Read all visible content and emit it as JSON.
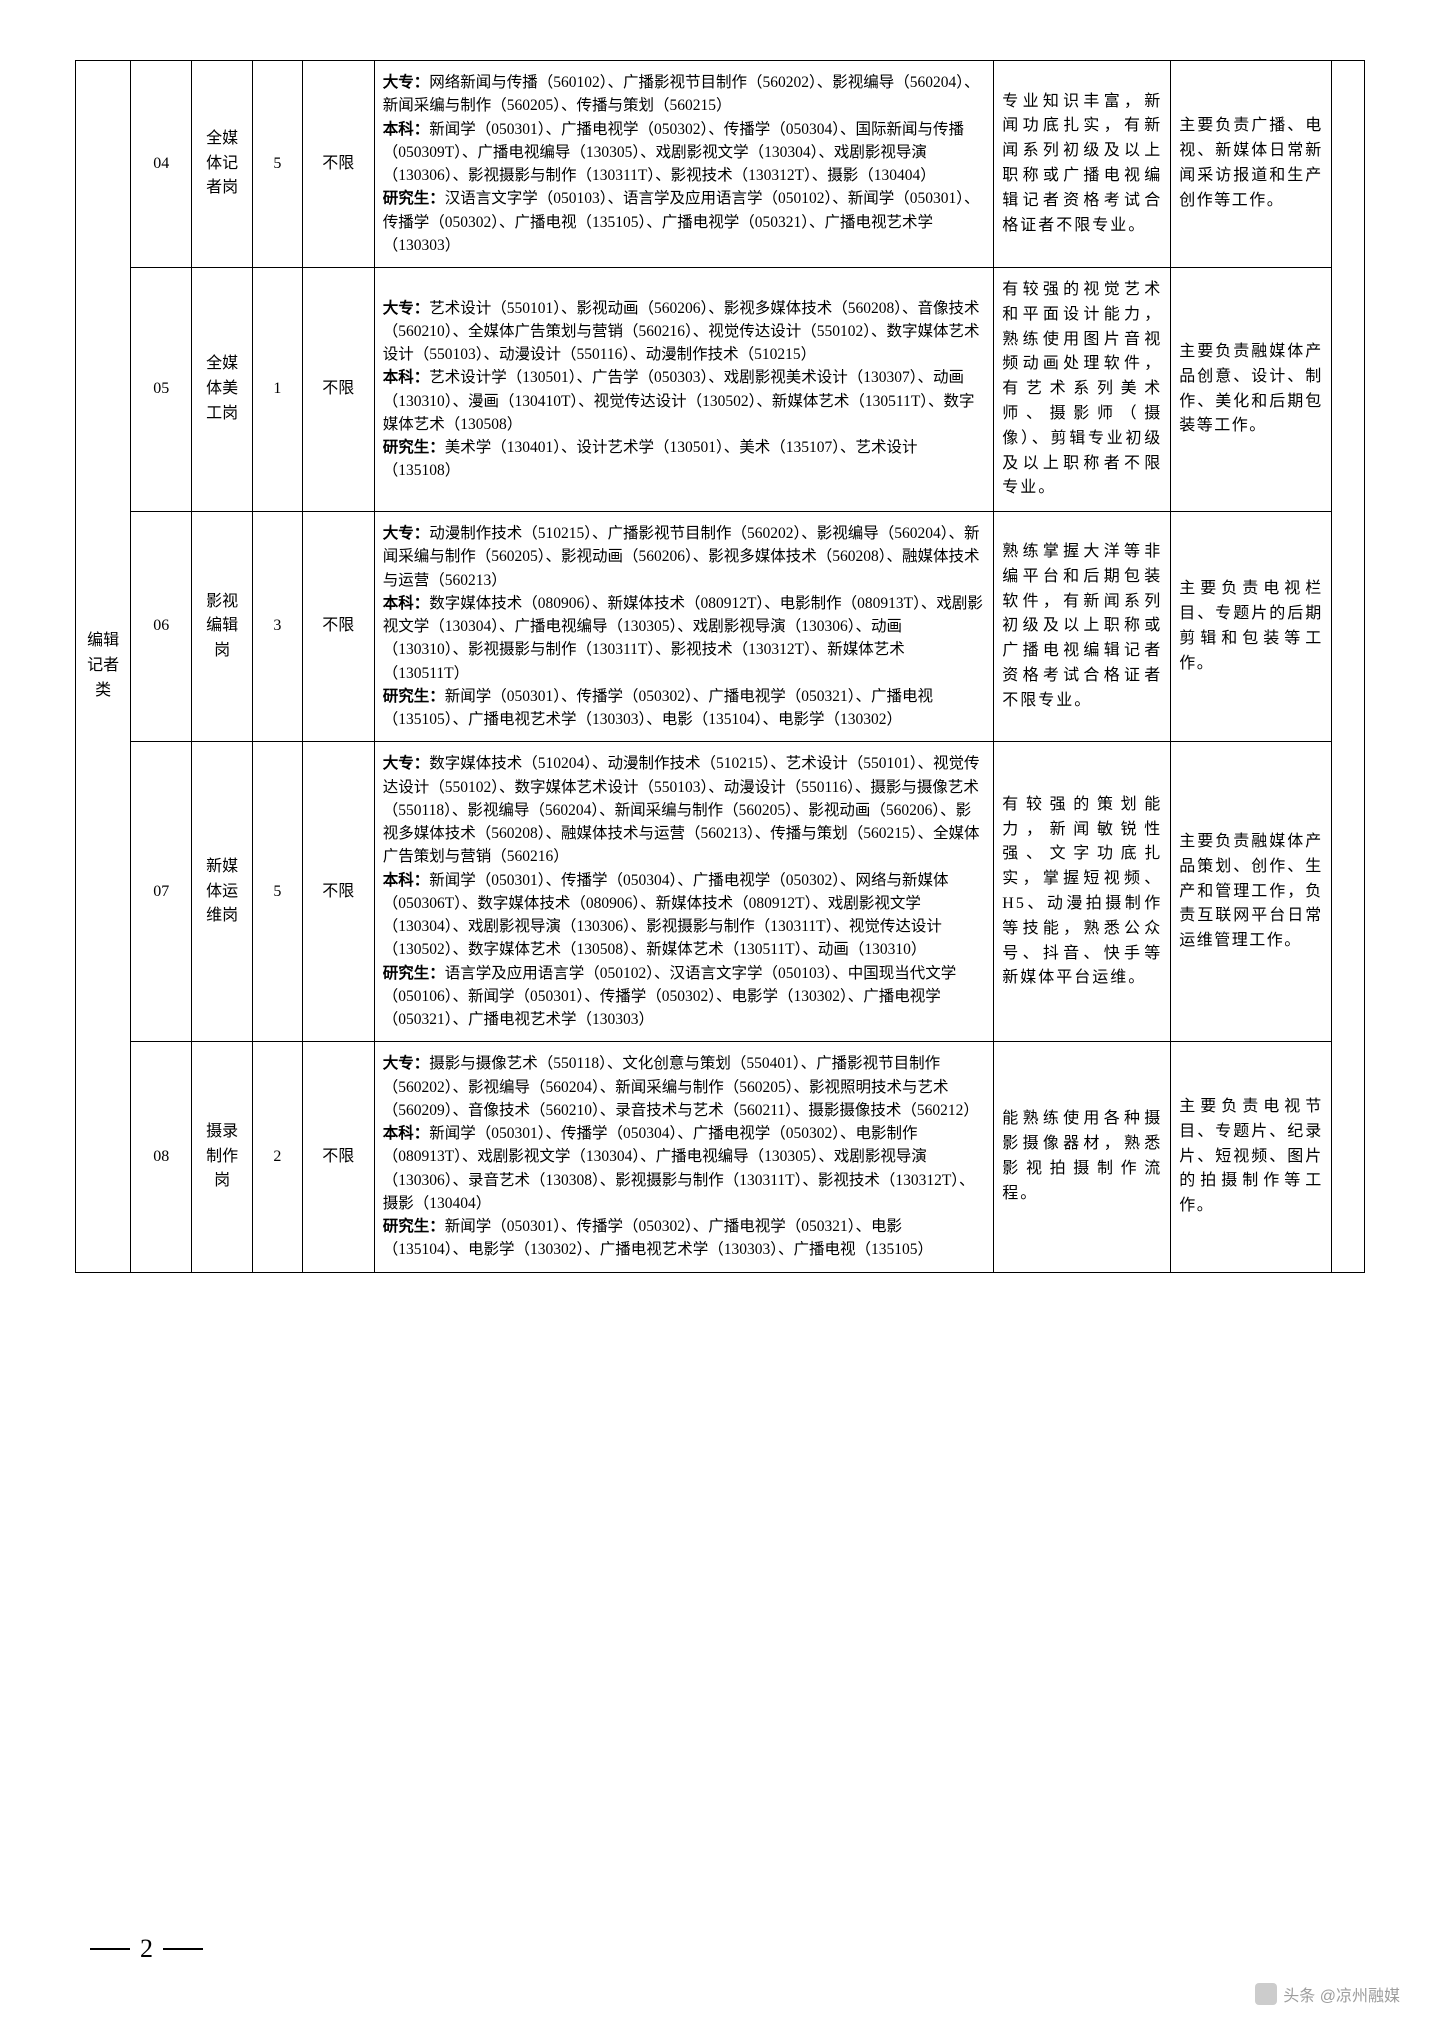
{
  "category": "编辑记者类",
  "rows": [
    {
      "code": "04",
      "post": "全媒体记者岗",
      "num": "5",
      "limit": "不限",
      "req": "<b>大专：</b>网络新闻与传播（560102）、广播影视节目制作（560202）、影视编导（560204）、新闻采编与制作（560205）、传播与策划（560215）<br><b>本科：</b>新闻学（050301）、广播电视学（050302）、传播学（050304）、国际新闻与传播（050309T）、广播电视编导（130305）、戏剧影视文学（130304）、戏剧影视导演（130306）、影视摄影与制作（130311T）、影视技术（130312T）、摄影（130404）<br><b>研究生：</b>汉语言文字学（050103）、语言学及应用语言学（050102）、新闻学（050301）、传播学（050302）、广播电视（135105）、广播电视学（050321）、广播电视艺术学（130303）",
      "other": "专业知识丰富，新闻功底扎实，有新闻系列初级及以上职称或广播电视编辑记者资格考试合格证者不限专业。",
      "duty": "主要负责广播、电视、新媒体日常新闻采访报道和生产创作等工作。"
    },
    {
      "code": "05",
      "post": "全媒体美工岗",
      "num": "1",
      "limit": "不限",
      "req": "<b>大专：</b>艺术设计（550101）、影视动画（560206）、影视多媒体技术（560208）、音像技术（560210）、全媒体广告策划与营销（560216）、视觉传达设计（550102）、数字媒体艺术设计（550103）、动漫设计（550116）、动漫制作技术（510215）<br><b>本科：</b>艺术设计学（130501）、广告学（050303）、戏剧影视美术设计（130307）、动画（130310）、漫画（130410T）、视觉传达设计（130502）、新媒体艺术（130511T）、数字媒体艺术（130508）<br><b>研究生：</b>美术学（130401）、设计艺术学（130501）、美术（135107）、艺术设计（135108）",
      "other": "有较强的视觉艺术和平面设计能力，熟练使用图片音视频动画处理软件，有艺术系列美术师、摄影师（摄像）、剪辑专业初级及以上职称者不限专业。",
      "duty": "主要负责融媒体产品创意、设计、制作、美化和后期包装等工作。"
    },
    {
      "code": "06",
      "post": "影视编辑岗",
      "num": "3",
      "limit": "不限",
      "req": "<b>大专：</b>动漫制作技术（510215）、广播影视节目制作（560202）、影视编导（560204）、新闻采编与制作（560205）、影视动画（560206）、影视多媒体技术（560208）、融媒体技术与运营（560213）<br><b>本科：</b>数字媒体技术（080906）、新媒体技术（080912T）、电影制作（080913T）、戏剧影视文学（130304）、广播电视编导（130305）、戏剧影视导演（130306）、动画（130310）、影视摄影与制作（130311T）、影视技术（130312T）、新媒体艺术（130511T）<br><b>研究生：</b>新闻学（050301）、传播学（050302）、广播电视学（050321）、广播电视（135105）、广播电视艺术学（130303）、电影（135104）、电影学（130302）",
      "other": "熟练掌握大洋等非编平台和后期包装软件，有新闻系列初级及以上职称或广播电视编辑记者资格考试合格证者不限专业。",
      "duty": "主要负责电视栏目、专题片的后期剪辑和包装等工作。"
    },
    {
      "code": "07",
      "post": "新媒体运维岗",
      "num": "5",
      "limit": "不限",
      "req": "<b>大专：</b>数字媒体技术（510204）、动漫制作技术（510215）、艺术设计（550101）、视觉传达设计（550102）、数字媒体艺术设计（550103）、动漫设计（550116）、摄影与摄像艺术（550118）、影视编导（560204）、新闻采编与制作（560205）、影视动画（560206）、影视多媒体技术（560208）、融媒体技术与运营（560213）、传播与策划（560215）、全媒体广告策划与营销（560216）<br><b>本科：</b>新闻学（050301）、传播学（050304）、广播电视学（050302）、网络与新媒体（050306T）、数字媒体技术（080906）、新媒体技术（080912T）、戏剧影视文学（130304）、戏剧影视导演（130306）、影视摄影与制作（130311T）、视觉传达设计（130502）、数字媒体艺术（130508）、新媒体艺术（130511T）、动画（130310）<br><b>研究生：</b>语言学及应用语言学（050102）、汉语言文字学（050103）、中国现当代文学（050106）、新闻学（050301）、传播学（050302）、电影学（130302）、广播电视学（050321）、广播电视艺术学（130303）",
      "other": "有较强的策划能力，新闻敏锐性强、文字功底扎实，掌握短视频、H5、动漫拍摄制作等技能，熟悉公众号、抖音、快手等新媒体平台运维。",
      "duty": "主要负责融媒体产品策划、创作、生产和管理工作，负责互联网平台日常运维管理工作。"
    },
    {
      "code": "08",
      "post": "摄录制作岗",
      "num": "2",
      "limit": "不限",
      "req": "<b>大专：</b>摄影与摄像艺术（550118）、文化创意与策划（550401）、广播影视节目制作（560202）、影视编导（560204）、新闻采编与制作（560205）、影视照明技术与艺术（560209）、音像技术（560210）、录音技术与艺术（560211）、摄影摄像技术（560212）<br><b>本科：</b>新闻学（050301）、传播学（050304）、广播电视学（050302）、电影制作（080913T）、戏剧影视文学（130304）、广播电视编导（130305）、戏剧影视导演（130306）、录音艺术（130308）、影视摄影与制作（130311T）、影视技术（130312T）、摄影（130404）<br><b>研究生：</b>新闻学（050301）、传播学（050302）、广播电视学（050321）、电影（135104）、电影学（130302）、广播电视艺术学（130303）、广播电视（135105）",
      "other": "能熟练使用各种摄影摄像器材，熟悉影视拍摄制作流程。",
      "duty": "主要负责电视节目、专题片、纪录片、短视频、图片的拍摄制作等工作。"
    }
  ],
  "pageNumber": "2",
  "watermark": "头条 @凉州融媒"
}
